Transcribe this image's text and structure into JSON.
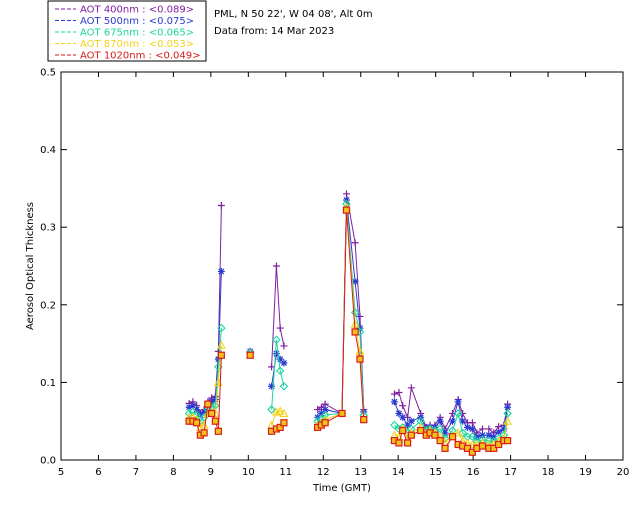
{
  "header": {
    "site": "PML, N 50 22', W 04 08', Alt 0m",
    "date": "Data from: 14 Mar 2023"
  },
  "chart_data": {
    "type": "line",
    "xlabel": "Time (GMT)",
    "ylabel": "Aerosol Optical Thickness",
    "xlim": [
      5,
      20
    ],
    "ylim": [
      0,
      0.5
    ],
    "x_ticks": [
      "5",
      "6",
      "7",
      "8",
      "9",
      "10",
      "11",
      "12",
      "13",
      "14",
      "15",
      "16",
      "17",
      "18",
      "19",
      "20"
    ],
    "y_ticks": [
      "0.0",
      "0.1",
      "0.2",
      "0.3",
      "0.4",
      "0.5"
    ],
    "legend_position": "top-left outside",
    "series": [
      {
        "name": "AOT  400nm : <0.089>",
        "color": "#7f1fa0",
        "marker": "plus",
        "points": [
          [
            8.42,
            0.073
          ],
          [
            8.52,
            0.075
          ],
          [
            8.62,
            0.07
          ],
          [
            8.72,
            0.06
          ],
          [
            8.82,
            0.065
          ],
          [
            8.92,
            0.075
          ],
          [
            9.02,
            0.08
          ],
          [
            9.12,
            0.082
          ],
          [
            9.2,
            0.14
          ],
          [
            9.28,
            0.328
          ],
          [
            10.05,
            0.14
          ],
          [
            10.62,
            0.12
          ],
          [
            10.75,
            0.25
          ],
          [
            10.85,
            0.17
          ],
          [
            10.95,
            0.147
          ],
          [
            11.85,
            0.065
          ],
          [
            11.95,
            0.068
          ],
          [
            12.05,
            0.072
          ],
          [
            12.5,
            0.06
          ],
          [
            12.62,
            0.343
          ],
          [
            12.85,
            0.28
          ],
          [
            12.98,
            0.185
          ],
          [
            13.08,
            0.065
          ],
          [
            13.9,
            0.085
          ],
          [
            14.02,
            0.087
          ],
          [
            14.12,
            0.07
          ],
          [
            14.25,
            0.055
          ],
          [
            14.35,
            0.093
          ],
          [
            14.6,
            0.06
          ],
          [
            14.75,
            0.042
          ],
          [
            14.85,
            0.045
          ],
          [
            14.98,
            0.045
          ],
          [
            15.12,
            0.055
          ],
          [
            15.25,
            0.04
          ],
          [
            15.45,
            0.06
          ],
          [
            15.6,
            0.078
          ],
          [
            15.72,
            0.06
          ],
          [
            15.85,
            0.048
          ],
          [
            15.98,
            0.048
          ],
          [
            16.1,
            0.035
          ],
          [
            16.25,
            0.04
          ],
          [
            16.42,
            0.04
          ],
          [
            16.55,
            0.035
          ],
          [
            16.68,
            0.043
          ],
          [
            16.82,
            0.045
          ],
          [
            16.92,
            0.072
          ]
        ]
      },
      {
        "name": "AOT  500nm : <0.075>",
        "color": "#2b3bcf",
        "marker": "star",
        "points": [
          [
            8.42,
            0.068
          ],
          [
            8.52,
            0.07
          ],
          [
            8.62,
            0.065
          ],
          [
            8.72,
            0.058
          ],
          [
            8.82,
            0.062
          ],
          [
            8.92,
            0.072
          ],
          [
            9.02,
            0.075
          ],
          [
            9.12,
            0.078
          ],
          [
            9.2,
            0.13
          ],
          [
            9.28,
            0.243
          ],
          [
            10.05,
            0.14
          ],
          [
            10.62,
            0.095
          ],
          [
            10.75,
            0.137
          ],
          [
            10.85,
            0.13
          ],
          [
            10.95,
            0.125
          ],
          [
            11.85,
            0.055
          ],
          [
            11.95,
            0.06
          ],
          [
            12.05,
            0.065
          ],
          [
            12.5,
            0.06
          ],
          [
            12.62,
            0.335
          ],
          [
            12.85,
            0.23
          ],
          [
            12.98,
            0.17
          ],
          [
            13.08,
            0.062
          ],
          [
            13.9,
            0.075
          ],
          [
            14.02,
            0.06
          ],
          [
            14.12,
            0.055
          ],
          [
            14.25,
            0.045
          ],
          [
            14.35,
            0.05
          ],
          [
            14.6,
            0.055
          ],
          [
            14.75,
            0.04
          ],
          [
            14.85,
            0.042
          ],
          [
            14.98,
            0.042
          ],
          [
            15.12,
            0.05
          ],
          [
            15.25,
            0.035
          ],
          [
            15.45,
            0.05
          ],
          [
            15.6,
            0.075
          ],
          [
            15.72,
            0.05
          ],
          [
            15.85,
            0.042
          ],
          [
            15.98,
            0.04
          ],
          [
            16.1,
            0.03
          ],
          [
            16.25,
            0.032
          ],
          [
            16.42,
            0.032
          ],
          [
            16.55,
            0.03
          ],
          [
            16.68,
            0.036
          ],
          [
            16.82,
            0.04
          ],
          [
            16.92,
            0.068
          ]
        ]
      },
      {
        "name": "AOT  675nm : <0.065>",
        "color": "#1ad6a0",
        "marker": "diamond",
        "points": [
          [
            8.42,
            0.06
          ],
          [
            8.52,
            0.062
          ],
          [
            8.62,
            0.058
          ],
          [
            8.72,
            0.05
          ],
          [
            8.82,
            0.055
          ],
          [
            8.92,
            0.065
          ],
          [
            9.02,
            0.068
          ],
          [
            9.12,
            0.07
          ],
          [
            9.2,
            0.12
          ],
          [
            9.28,
            0.17
          ],
          [
            10.05,
            0.138
          ],
          [
            10.62,
            0.065
          ],
          [
            10.75,
            0.155
          ],
          [
            10.85,
            0.115
          ],
          [
            10.95,
            0.095
          ],
          [
            11.85,
            0.05
          ],
          [
            11.95,
            0.052
          ],
          [
            12.05,
            0.058
          ],
          [
            12.5,
            0.06
          ],
          [
            12.62,
            0.33
          ],
          [
            12.85,
            0.19
          ],
          [
            12.98,
            0.165
          ],
          [
            13.08,
            0.058
          ],
          [
            13.9,
            0.045
          ],
          [
            14.02,
            0.04
          ],
          [
            14.12,
            0.042
          ],
          [
            14.25,
            0.035
          ],
          [
            14.35,
            0.04
          ],
          [
            14.6,
            0.05
          ],
          [
            14.75,
            0.038
          ],
          [
            14.85,
            0.04
          ],
          [
            14.98,
            0.038
          ],
          [
            15.12,
            0.04
          ],
          [
            15.25,
            0.028
          ],
          [
            15.45,
            0.038
          ],
          [
            15.6,
            0.06
          ],
          [
            15.72,
            0.035
          ],
          [
            15.85,
            0.03
          ],
          [
            15.98,
            0.03
          ],
          [
            16.1,
            0.024
          ],
          [
            16.25,
            0.026
          ],
          [
            16.42,
            0.025
          ],
          [
            16.55,
            0.024
          ],
          [
            16.68,
            0.028
          ],
          [
            16.82,
            0.032
          ],
          [
            16.92,
            0.06
          ]
        ]
      },
      {
        "name": "AOT  870nm : <0.053>",
        "color": "#f2d21a",
        "marker": "triangle",
        "points": [
          [
            8.42,
            0.055
          ],
          [
            8.52,
            0.055
          ],
          [
            8.62,
            0.052
          ],
          [
            8.72,
            0.042
          ],
          [
            8.82,
            0.045
          ],
          [
            8.92,
            0.06
          ],
          [
            9.02,
            0.062
          ],
          [
            9.12,
            0.06
          ],
          [
            9.2,
            0.1
          ],
          [
            9.28,
            0.148
          ],
          [
            10.05,
            0.136
          ],
          [
            10.62,
            0.045
          ],
          [
            10.75,
            0.062
          ],
          [
            10.85,
            0.063
          ],
          [
            10.95,
            0.06
          ],
          [
            11.85,
            0.045
          ],
          [
            11.95,
            0.048
          ],
          [
            12.05,
            0.052
          ],
          [
            12.5,
            0.06
          ],
          [
            12.62,
            0.326
          ],
          [
            12.85,
            0.175
          ],
          [
            12.98,
            0.14
          ],
          [
            13.08,
            0.054
          ],
          [
            13.9,
            0.032
          ],
          [
            14.02,
            0.03
          ],
          [
            14.12,
            0.04
          ],
          [
            14.25,
            0.028
          ],
          [
            14.35,
            0.035
          ],
          [
            14.6,
            0.042
          ],
          [
            14.75,
            0.035
          ],
          [
            14.85,
            0.038
          ],
          [
            14.98,
            0.035
          ],
          [
            15.12,
            0.03
          ],
          [
            15.25,
            0.022
          ],
          [
            15.45,
            0.032
          ],
          [
            15.6,
            0.035
          ],
          [
            15.72,
            0.025
          ],
          [
            15.85,
            0.022
          ],
          [
            15.98,
            0.02
          ],
          [
            16.1,
            0.02
          ],
          [
            16.25,
            0.022
          ],
          [
            16.42,
            0.02
          ],
          [
            16.55,
            0.02
          ],
          [
            16.68,
            0.024
          ],
          [
            16.82,
            0.028
          ],
          [
            16.92,
            0.05
          ]
        ]
      },
      {
        "name": "AOT 1020nm : <0.049>",
        "color": "#d81a1a",
        "marker": "square",
        "points": [
          [
            8.42,
            0.05
          ],
          [
            8.52,
            0.05
          ],
          [
            8.62,
            0.048
          ],
          [
            8.72,
            0.032
          ],
          [
            8.82,
            0.035
          ],
          [
            8.92,
            0.072
          ],
          [
            9.02,
            0.06
          ],
          [
            9.12,
            0.05
          ],
          [
            9.2,
            0.037
          ],
          [
            9.28,
            0.135
          ],
          [
            10.05,
            0.135
          ],
          [
            10.62,
            0.037
          ],
          [
            10.75,
            0.04
          ],
          [
            10.85,
            0.042
          ],
          [
            10.95,
            0.048
          ],
          [
            11.85,
            0.042
          ],
          [
            11.95,
            0.045
          ],
          [
            12.05,
            0.048
          ],
          [
            12.5,
            0.06
          ],
          [
            12.62,
            0.322
          ],
          [
            12.85,
            0.165
          ],
          [
            12.98,
            0.13
          ],
          [
            13.08,
            0.052
          ],
          [
            13.9,
            0.025
          ],
          [
            14.02,
            0.022
          ],
          [
            14.12,
            0.038
          ],
          [
            14.25,
            0.022
          ],
          [
            14.35,
            0.032
          ],
          [
            14.6,
            0.038
          ],
          [
            14.75,
            0.032
          ],
          [
            14.85,
            0.035
          ],
          [
            14.98,
            0.032
          ],
          [
            15.12,
            0.025
          ],
          [
            15.25,
            0.015
          ],
          [
            15.45,
            0.03
          ],
          [
            15.6,
            0.02
          ],
          [
            15.72,
            0.018
          ],
          [
            15.85,
            0.015
          ],
          [
            15.98,
            0.01
          ],
          [
            16.1,
            0.015
          ],
          [
            16.25,
            0.018
          ],
          [
            16.42,
            0.015
          ],
          [
            16.55,
            0.015
          ],
          [
            16.68,
            0.02
          ],
          [
            16.82,
            0.025
          ],
          [
            16.92,
            0.025
          ]
        ]
      }
    ]
  }
}
